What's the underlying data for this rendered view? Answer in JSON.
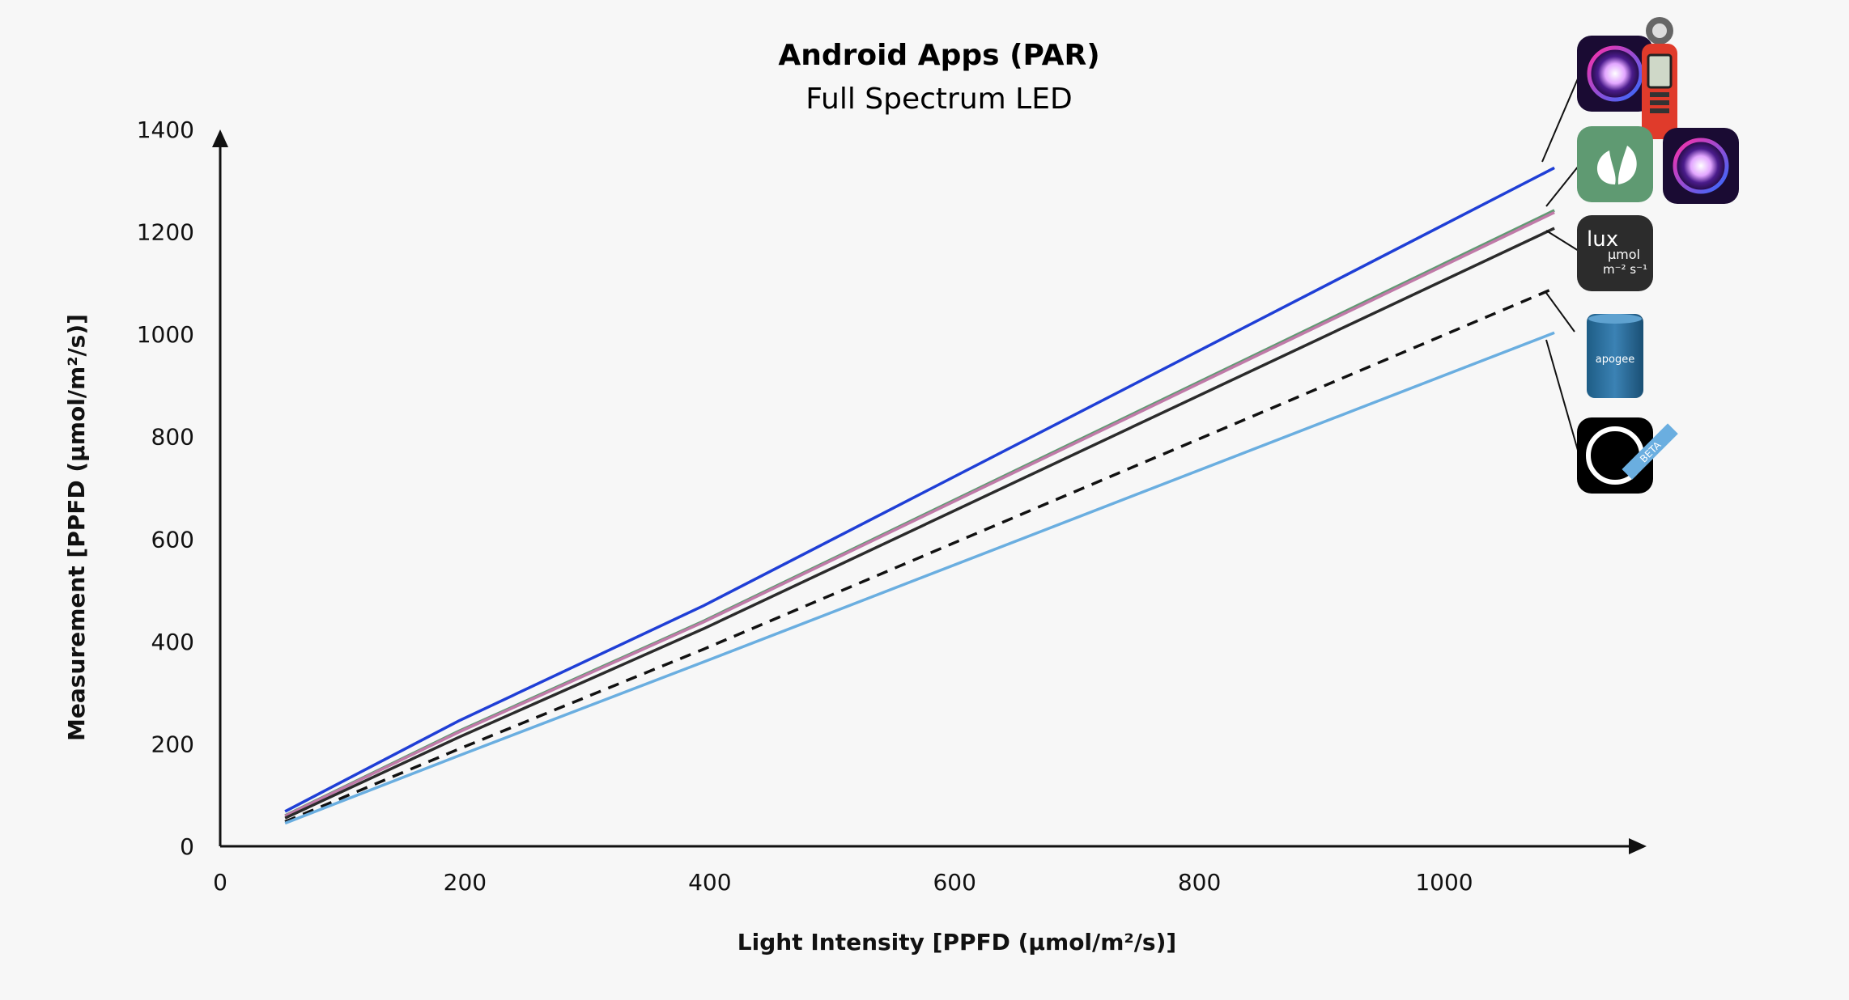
{
  "chart_data": {
    "type": "line",
    "title": "Android Apps (PAR)",
    "subtitle": "Full Spectrum LED",
    "xlabel": "Light Intensity [PPFD (µmol/m²/s)]",
    "ylabel": "Measurement [PPFD (µmol/m²/s)]",
    "xlim": [
      0,
      1150
    ],
    "ylim": [
      0,
      1400
    ],
    "x_ticks": [
      0,
      200,
      400,
      600,
      800,
      1000
    ],
    "y_ticks": [
      0,
      200,
      400,
      600,
      800,
      1000,
      1200,
      1400
    ],
    "grid": false,
    "legend": "icons at right end of lines",
    "series": [
      {
        "color": "#1f3fd6",
        "dash": false,
        "x": [
          53,
          195,
          395,
          1090
        ],
        "y": [
          68,
          245,
          470,
          1325
        ]
      },
      {
        "color": "#5f9a72",
        "dash": false,
        "x": [
          53,
          195,
          395,
          1090
        ],
        "y": [
          60,
          225,
          440,
          1242
        ]
      },
      {
        "color": "#c07aa8",
        "dash": false,
        "x": [
          53,
          195,
          395,
          1090
        ],
        "y": [
          59,
          223,
          438,
          1238
        ]
      },
      {
        "color": "#2b2b2b",
        "dash": false,
        "x": [
          53,
          195,
          395,
          1090
        ],
        "y": [
          55,
          213,
          425,
          1207
        ]
      },
      {
        "color": "#111111",
        "dash": true,
        "x": [
          53,
          195,
          395,
          1090
        ],
        "y": [
          48,
          190,
          385,
          1090
        ]
      },
      {
        "color": "#6aaee0",
        "dash": false,
        "x": [
          53,
          195,
          395,
          1090
        ],
        "y": [
          45,
          177,
          360,
          1003
        ]
      }
    ]
  },
  "legend_icons": [
    {
      "name": "lux-meter-icon",
      "text": "lux",
      "text2": "µmol",
      "text3": "m⁻² s⁻¹"
    },
    {
      "name": "apogee-sensor-icon",
      "text": "apogee"
    },
    {
      "name": "beta-app-icon",
      "text": "BETA"
    }
  ]
}
